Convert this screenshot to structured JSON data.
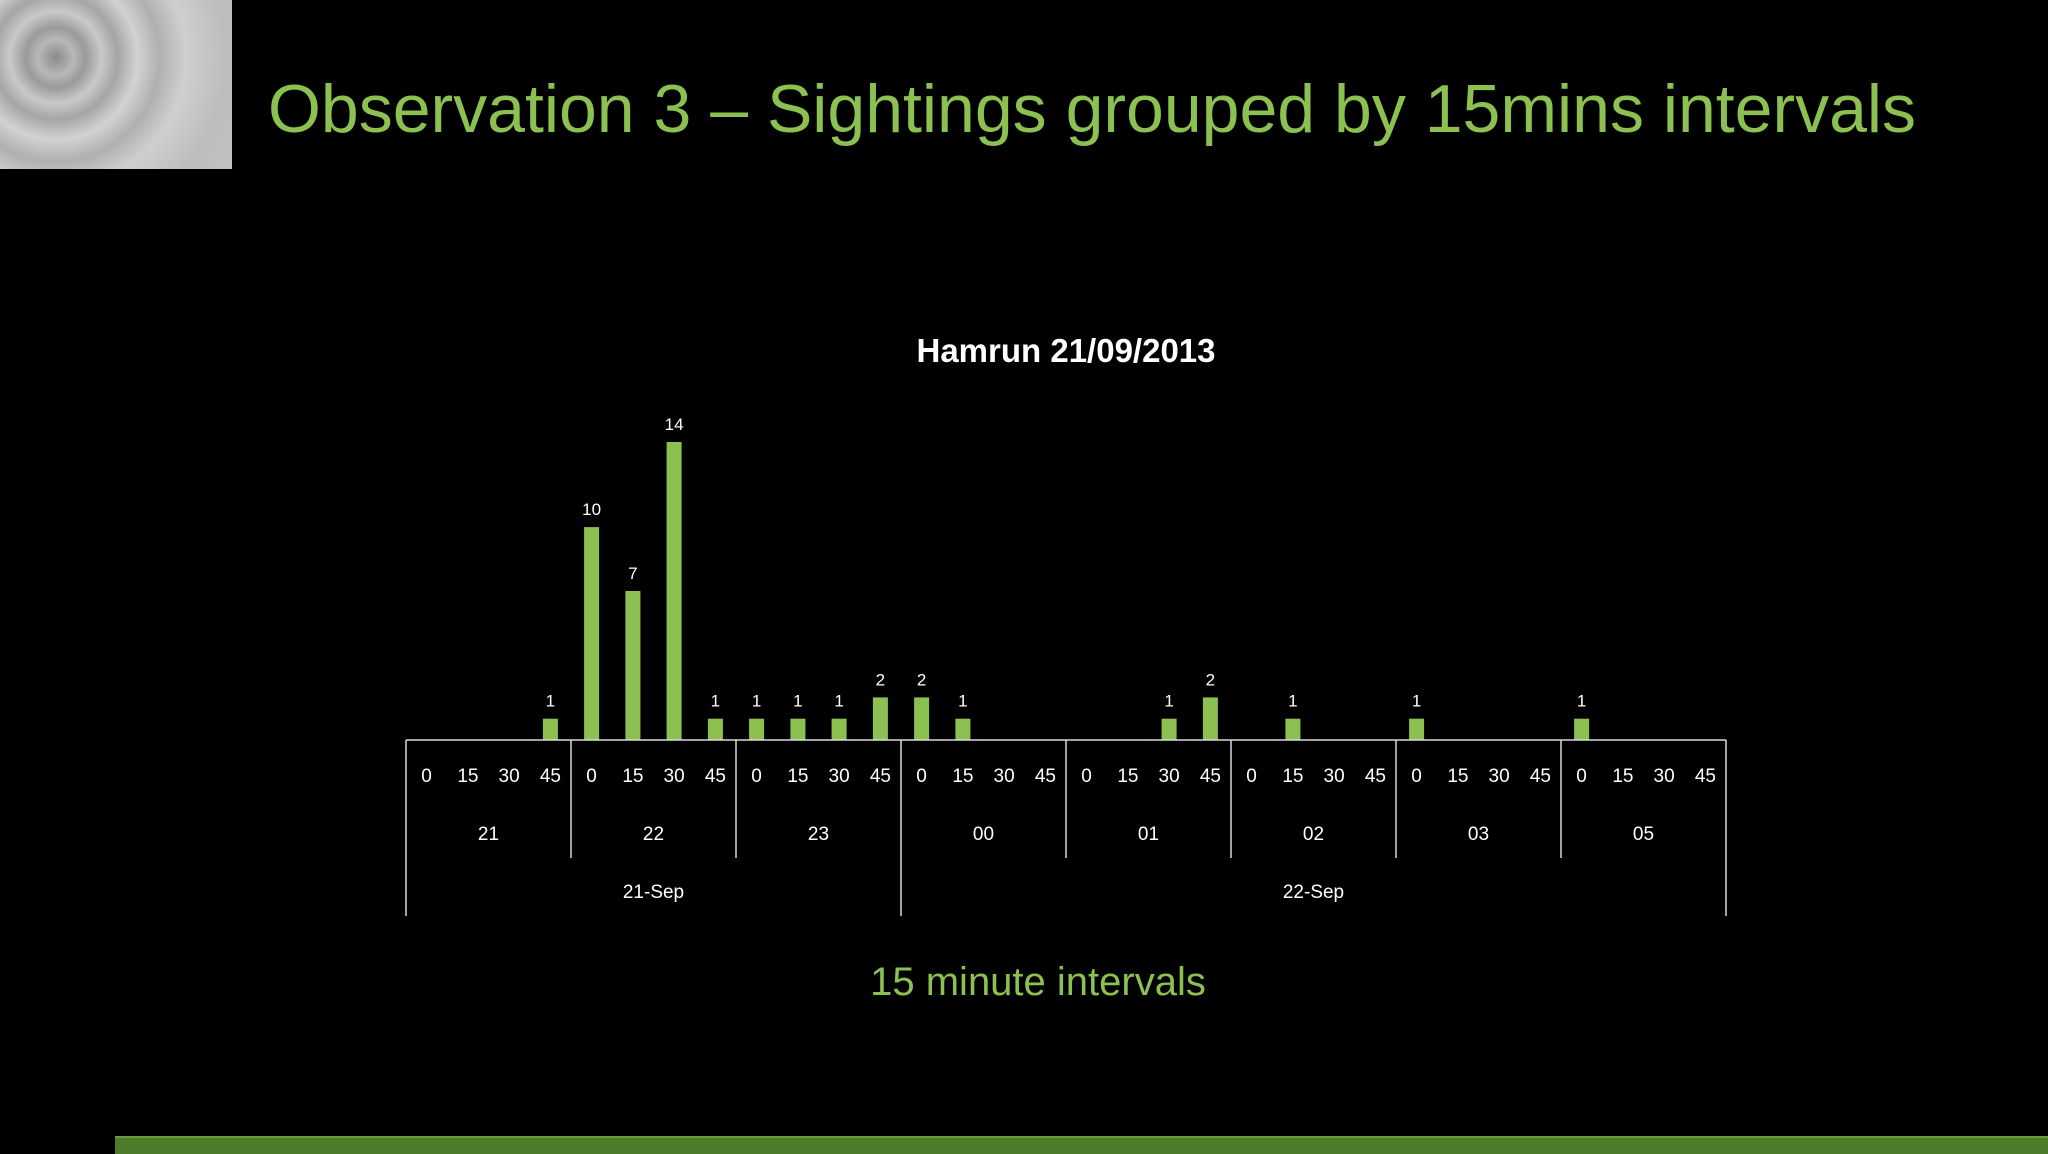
{
  "slide": {
    "title": "Observation 3 – Sightings grouped by 15mins intervals",
    "caption": "15 minute intervals"
  },
  "colors": {
    "background": "#000000",
    "accent": "#8cc152",
    "axis": "#d9d9d9",
    "text": "#ffffff",
    "band": "#4e7a2b"
  },
  "chart_data": {
    "type": "bar",
    "title": "Hamrun 21/09/2013",
    "ylim": [
      0,
      14
    ],
    "grid": false,
    "legend": "none",
    "x_levels": {
      "minutes": [
        "0",
        "15",
        "30",
        "45",
        "0",
        "15",
        "30",
        "45",
        "0",
        "15",
        "30",
        "45",
        "0",
        "15",
        "30",
        "45",
        "0",
        "15",
        "30",
        "45",
        "0",
        "15",
        "30",
        "45",
        "0",
        "15",
        "30",
        "45",
        "0",
        "15",
        "30",
        "45"
      ],
      "hours": [
        "21",
        "22",
        "23",
        "00",
        "01",
        "02",
        "03",
        "05"
      ],
      "dates": [
        "21-Sep",
        "22-Sep"
      ]
    },
    "values": [
      0,
      0,
      0,
      1,
      10,
      7,
      14,
      1,
      1,
      1,
      1,
      2,
      2,
      1,
      0,
      0,
      0,
      0,
      1,
      2,
      0,
      1,
      0,
      0,
      1,
      0,
      0,
      0,
      1,
      0,
      0,
      0
    ]
  }
}
